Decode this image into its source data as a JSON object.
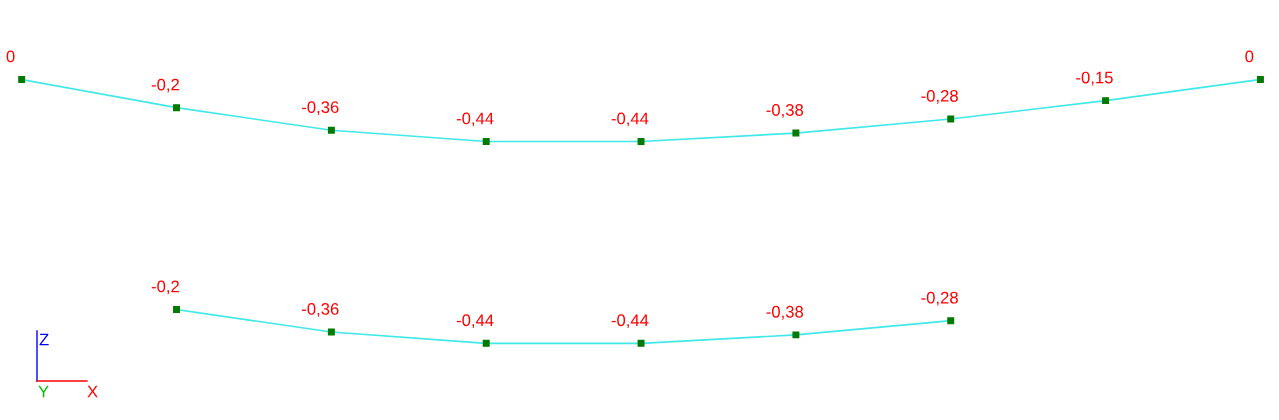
{
  "chart_data": [
    {
      "type": "line",
      "categories": [
        null,
        null,
        null,
        null,
        null,
        null,
        null,
        null,
        null
      ],
      "grid": false,
      "marker": "square",
      "line_style": "solid",
      "series": [
        {
          "color": "#40e8e8",
          "values": [
            0,
            -0.2,
            -0.36,
            -0.44,
            -0.44,
            -0.38,
            -0.28,
            -0.15,
            0
          ],
          "value_labels": [
            "0",
            "-0,2",
            "-0,36",
            "-0,44",
            "-0,44",
            "-0,38",
            "-0,28",
            "-0,15",
            "0"
          ]
        }
      ]
    },
    {
      "type": "line",
      "categories": [
        null,
        null,
        null,
        null,
        null,
        null,
        null,
        null,
        null
      ],
      "grid": false,
      "marker": "square",
      "line_style": "solid",
      "series": [
        {
          "color": "#40e8e8",
          "values": [
            null,
            -0.2,
            -0.36,
            -0.44,
            -0.44,
            -0.38,
            -0.28,
            null,
            null
          ],
          "value_labels": [
            null,
            "-0,2",
            "-0,36",
            "-0,44",
            "-0,44",
            "-0,38",
            "-0,28",
            null,
            null
          ]
        }
      ],
      "annotations": [
        "Z",
        "Y",
        "X"
      ]
    }
  ]
}
